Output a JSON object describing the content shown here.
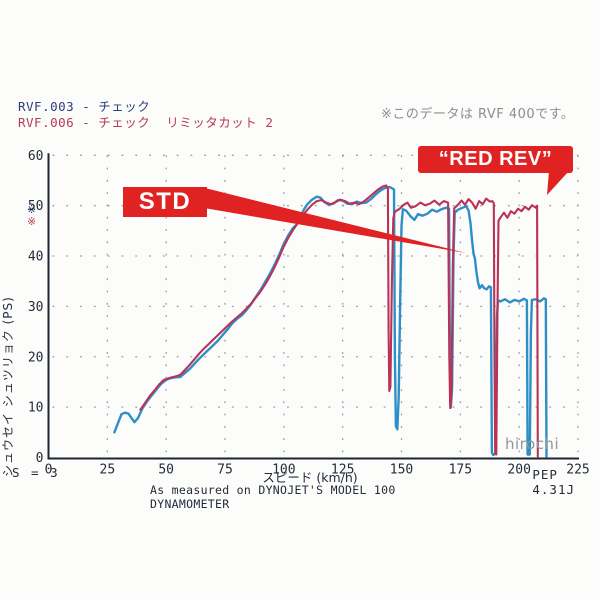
{
  "header": {
    "legend": [
      {
        "label": "RVF.003 - チェック",
        "color": "#2c3c7c"
      },
      {
        "label": "RVF.006 - チェック  リミッタカット 2",
        "color": "#b43a5c"
      }
    ],
    "note": "※このデータは RVF 400です。"
  },
  "y_axis_marks": [
    {
      "glyph": "※",
      "color": "#2c3c7c"
    },
    {
      "glyph": "※",
      "color": "#b43a5c"
    }
  ],
  "annotations": {
    "std": "STD",
    "red_rev": "“RED REV”",
    "watermark": "hirochi"
  },
  "footer": {
    "s_label": "S = 3",
    "measured": "As measured on DYNOJET'S MODEL 100 DYNAMOMETER",
    "pep": "PEP 4.31J"
  },
  "chart_data": {
    "type": "line",
    "title": "",
    "xlabel": "スピード (km/h)",
    "ylabel": "シュウセイ シュツリョク (PS)",
    "xlim": [
      0,
      225
    ],
    "ylim": [
      0,
      60
    ],
    "x_ticks": [
      0,
      25,
      50,
      75,
      100,
      125,
      150,
      175,
      200,
      225
    ],
    "y_ticks": [
      0,
      10,
      20,
      30,
      40,
      50,
      60
    ],
    "grid": "dotted",
    "legend_position": "top-left",
    "axis_color": "#1b2533",
    "grid_color": "#8b8e99",
    "series": [
      {
        "name": "RVF.003 - チェック (STD)",
        "color": "#2d8fc6",
        "points": [
          [
            28,
            5
          ],
          [
            29.5,
            6.8
          ],
          [
            31,
            8.6
          ],
          [
            32.5,
            8.9
          ],
          [
            34,
            8.7
          ],
          [
            35,
            8.0
          ],
          [
            36.5,
            7.0
          ],
          [
            38,
            7.8
          ],
          [
            40,
            9.8
          ],
          [
            42,
            11.2
          ],
          [
            44,
            12.4
          ],
          [
            46,
            13.6
          ],
          [
            48,
            14.7
          ],
          [
            50,
            15.4
          ],
          [
            51.5,
            15.7
          ],
          [
            53.5,
            15.9
          ],
          [
            56,
            16.0
          ],
          [
            58,
            16.8
          ],
          [
            60,
            17.6
          ],
          [
            62,
            18.6
          ],
          [
            64,
            19.6
          ],
          [
            66,
            20.5
          ],
          [
            68,
            21.4
          ],
          [
            70,
            22.3
          ],
          [
            72,
            23.2
          ],
          [
            74,
            24.3
          ],
          [
            76,
            25.4
          ],
          [
            78,
            26.6
          ],
          [
            80,
            27.5
          ],
          [
            82,
            28.2
          ],
          [
            84,
            29.2
          ],
          [
            86,
            30.4
          ],
          [
            88,
            31.8
          ],
          [
            90,
            33.2
          ],
          [
            92,
            34.8
          ],
          [
            94,
            36.4
          ],
          [
            96,
            38.2
          ],
          [
            98,
            40.2
          ],
          [
            100,
            42.4
          ],
          [
            102,
            44.2
          ],
          [
            104,
            45.6
          ],
          [
            105.5,
            46.3
          ],
          [
            107,
            47.7
          ],
          [
            108.5,
            49.2
          ],
          [
            110,
            50.3
          ],
          [
            112,
            51.2
          ],
          [
            114,
            51.8
          ],
          [
            115.5,
            51.6
          ],
          [
            117,
            50.8
          ],
          [
            119,
            50.2
          ],
          [
            121,
            50.4
          ],
          [
            123,
            51.1
          ],
          [
            125,
            51.0
          ],
          [
            127,
            50.4
          ],
          [
            129,
            50.3
          ],
          [
            131,
            50.8
          ],
          [
            133,
            50.5
          ],
          [
            135,
            50.6
          ],
          [
            137,
            51.3
          ],
          [
            139,
            52.2
          ],
          [
            141,
            53.0
          ],
          [
            143,
            53.5
          ],
          [
            145,
            53.7
          ],
          [
            146.8,
            53.2
          ],
          [
            147.2,
            20
          ],
          [
            147.6,
            6.2
          ],
          [
            148.2,
            5.6
          ],
          [
            148.8,
            12
          ],
          [
            149.4,
            30
          ],
          [
            150,
            46
          ],
          [
            150.6,
            49.3
          ],
          [
            152,
            49.0
          ],
          [
            154,
            47.8
          ],
          [
            155.5,
            47.2
          ],
          [
            157,
            48.3
          ],
          [
            159,
            48.0
          ],
          [
            161,
            48.4
          ],
          [
            163,
            49.2
          ],
          [
            165,
            48.8
          ],
          [
            167,
            49.3
          ],
          [
            169,
            49.6
          ],
          [
            170.2,
            49.4
          ],
          [
            170.6,
            18
          ],
          [
            171,
            10
          ],
          [
            171.5,
            14
          ],
          [
            172.1,
            40
          ],
          [
            172.6,
            48.6
          ],
          [
            174,
            49.2
          ],
          [
            176,
            49.6
          ],
          [
            177.5,
            49.9
          ],
          [
            178.5,
            49.0
          ],
          [
            179.3,
            46.5
          ],
          [
            180,
            43
          ],
          [
            180.6,
            40.5
          ],
          [
            181.2,
            39.5
          ],
          [
            181.8,
            37
          ],
          [
            182.5,
            34.8
          ],
          [
            183.2,
            33.6
          ],
          [
            184.2,
            34.2
          ],
          [
            185.2,
            33.6
          ],
          [
            186.2,
            33.4
          ],
          [
            187.2,
            34.0
          ],
          [
            188,
            33.8
          ],
          [
            188.4,
            1.0
          ],
          [
            189,
            0.5
          ],
          [
            190,
            0.8
          ],
          [
            190.6,
            28
          ],
          [
            191,
            31.2
          ],
          [
            192,
            31.0
          ],
          [
            194,
            31.4
          ],
          [
            196,
            30.8
          ],
          [
            198,
            31.3
          ],
          [
            200,
            31.0
          ],
          [
            202,
            31.5
          ],
          [
            203.3,
            31.2
          ],
          [
            203.6,
            0.6
          ],
          [
            204.5,
            0.6
          ],
          [
            205,
            25
          ],
          [
            205.4,
            31.3
          ],
          [
            207,
            31.4
          ],
          [
            209,
            31.0
          ],
          [
            210.5,
            31.6
          ],
          [
            211.3,
            31.4
          ],
          [
            211.6,
            0.2
          ]
        ]
      },
      {
        "name": "RVF.006 - チェック リミッタカット 2 (RED REV)",
        "color": "#ba3356",
        "points": [
          [
            39,
            9.5
          ],
          [
            41,
            10.8
          ],
          [
            43,
            12.2
          ],
          [
            45,
            13.3
          ],
          [
            47,
            14.5
          ],
          [
            49,
            15.4
          ],
          [
            51.5,
            15.8
          ],
          [
            54,
            16.1
          ],
          [
            56,
            16.4
          ],
          [
            58,
            17.4
          ],
          [
            60,
            18.4
          ],
          [
            62,
            19.5
          ],
          [
            64,
            20.6
          ],
          [
            66,
            21.6
          ],
          [
            68,
            22.5
          ],
          [
            70,
            23.4
          ],
          [
            72,
            24.3
          ],
          [
            74,
            25.2
          ],
          [
            76,
            26.1
          ],
          [
            78,
            27.0
          ],
          [
            80,
            27.8
          ],
          [
            82,
            28.6
          ],
          [
            84,
            29.5
          ],
          [
            86,
            30.5
          ],
          [
            88,
            31.7
          ],
          [
            90,
            32.9
          ],
          [
            92,
            34.3
          ],
          [
            94,
            35.9
          ],
          [
            96,
            37.7
          ],
          [
            98,
            39.7
          ],
          [
            100,
            41.9
          ],
          [
            102,
            43.7
          ],
          [
            104,
            45.2
          ],
          [
            106,
            46.6
          ],
          [
            108,
            48.0
          ],
          [
            110,
            49.2
          ],
          [
            112,
            50.2
          ],
          [
            114,
            50.9
          ],
          [
            116,
            51.1
          ],
          [
            118,
            50.6
          ],
          [
            120,
            50.3
          ],
          [
            122,
            50.7
          ],
          [
            124,
            51.2
          ],
          [
            126,
            50.9
          ],
          [
            128,
            50.4
          ],
          [
            130,
            50.6
          ],
          [
            132,
            50.3
          ],
          [
            134,
            50.8
          ],
          [
            136,
            51.6
          ],
          [
            138,
            52.4
          ],
          [
            140,
            53.2
          ],
          [
            142,
            53.8
          ],
          [
            143.5,
            54.0
          ],
          [
            144.2,
            53.4
          ],
          [
            144.5,
            25
          ],
          [
            144.8,
            13.2
          ],
          [
            145.3,
            14
          ],
          [
            145.9,
            35
          ],
          [
            146.5,
            47.5
          ],
          [
            147.2,
            48.8
          ],
          [
            149,
            49.3
          ],
          [
            151,
            50.2
          ],
          [
            152.5,
            50.6
          ],
          [
            154,
            49.6
          ],
          [
            156,
            49.9
          ],
          [
            158,
            50.6
          ],
          [
            160,
            50.1
          ],
          [
            162,
            50.4
          ],
          [
            164,
            51.0
          ],
          [
            166,
            50.2
          ],
          [
            168,
            50.9
          ],
          [
            169.8,
            50.6
          ],
          [
            170.3,
            20
          ],
          [
            170.7,
            9.8
          ],
          [
            171.2,
            12
          ],
          [
            171.8,
            38
          ],
          [
            172.4,
            49.5
          ],
          [
            174,
            50.2
          ],
          [
            175.5,
            51.0
          ],
          [
            177,
            50.2
          ],
          [
            178.5,
            51.3
          ],
          [
            180,
            50.6
          ],
          [
            181.5,
            49.4
          ],
          [
            183,
            50.9
          ],
          [
            184.5,
            50.3
          ],
          [
            186,
            51.4
          ],
          [
            187.5,
            50.8
          ],
          [
            188.5,
            50.9
          ],
          [
            189.2,
            50.5
          ],
          [
            189.5,
            20
          ],
          [
            189.8,
            0.8
          ],
          [
            190.3,
            0.6
          ],
          [
            190.8,
            30
          ],
          [
            191.2,
            47
          ],
          [
            192,
            47.6
          ],
          [
            193.5,
            48.6
          ],
          [
            195,
            47.6
          ],
          [
            196.5,
            48.9
          ],
          [
            198,
            48.4
          ],
          [
            199.5,
            49.4
          ],
          [
            201,
            48.9
          ],
          [
            202.5,
            49.8
          ],
          [
            204,
            49.2
          ],
          [
            205.5,
            50.1
          ],
          [
            207,
            49.6
          ],
          [
            207.6,
            50.0
          ],
          [
            207.9,
            0.2
          ]
        ]
      }
    ]
  }
}
